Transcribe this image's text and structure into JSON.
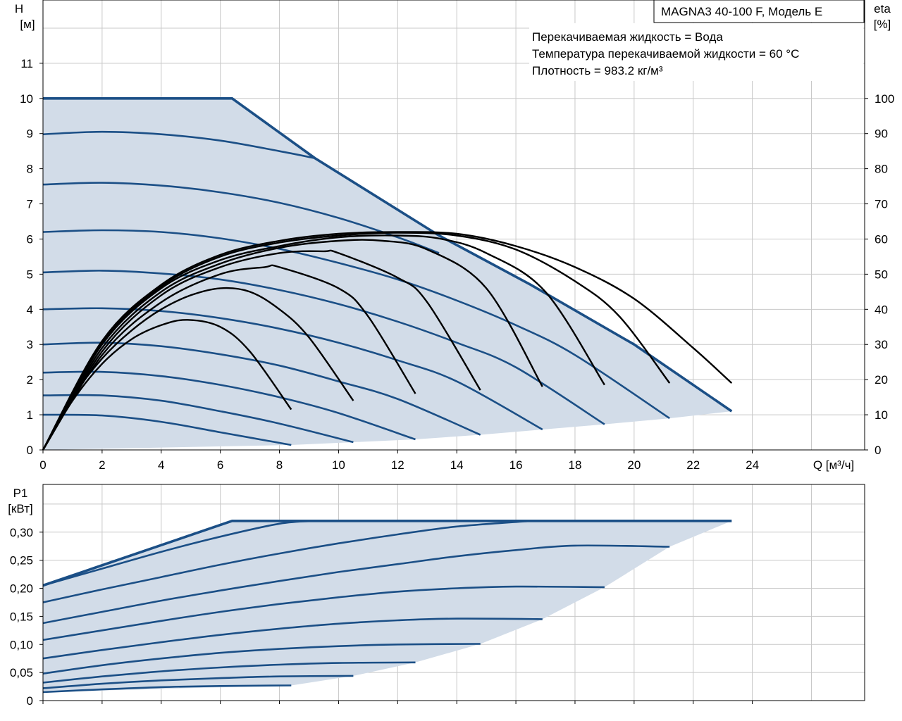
{
  "chart_data": [
    {
      "type": "line",
      "model_label": "MAGNA3 40-100 F, Модель E",
      "notes": [
        "Перекачиваемая жидкость = Вода",
        "Температура перекачиваемой жидкости = 60 °C",
        "Плотность = 983.2 кг/м³"
      ],
      "xlabel": "Q [м³/ч]",
      "ylabel_left_line1": "H",
      "ylabel_left_line2": "[м]",
      "ylabel_right_line1": "eta",
      "ylabel_right_line2": "[%]",
      "xlim": [
        0,
        27.8
      ],
      "ylim_left": [
        0,
        12.8
      ],
      "ylim_right": [
        0,
        128
      ],
      "x_ticks": [
        0,
        2,
        4,
        6,
        8,
        10,
        12,
        14,
        16,
        18,
        20,
        22,
        24
      ],
      "y_ticks_left": [
        0,
        1,
        2,
        3,
        4,
        5,
        6,
        7,
        8,
        9,
        10,
        11
      ],
      "y_ticks_right": [
        0,
        10,
        20,
        30,
        40,
        50,
        60,
        70,
        80,
        90,
        100
      ],
      "head_series": [
        {
          "x": [
            0,
            2,
            4,
            6,
            8.4
          ],
          "y": [
            1.0,
            0.98,
            0.8,
            0.5,
            0.14
          ]
        },
        {
          "x": [
            0,
            2,
            4,
            6,
            8,
            10.5
          ],
          "y": [
            1.55,
            1.55,
            1.4,
            1.1,
            0.75,
            0.22
          ]
        },
        {
          "x": [
            0,
            2,
            4,
            6,
            8,
            10,
            12.6
          ],
          "y": [
            2.2,
            2.22,
            2.1,
            1.85,
            1.5,
            1.05,
            0.3
          ]
        },
        {
          "x": [
            0,
            2,
            4,
            6,
            8,
            10,
            12,
            14.8
          ],
          "y": [
            3.0,
            3.05,
            2.95,
            2.72,
            2.4,
            1.95,
            1.45,
            0.43
          ]
        },
        {
          "x": [
            0,
            2,
            4,
            6,
            8,
            10,
            12,
            14,
            16.9
          ],
          "y": [
            4.0,
            4.03,
            3.95,
            3.75,
            3.45,
            3.05,
            2.55,
            1.95,
            0.58
          ]
        },
        {
          "x": [
            0,
            2,
            4,
            6,
            8,
            10,
            12,
            14,
            16,
            19.0
          ],
          "y": [
            5.05,
            5.1,
            5.02,
            4.85,
            4.55,
            4.15,
            3.65,
            3.05,
            2.35,
            0.73
          ]
        },
        {
          "x": [
            0,
            2,
            4,
            6,
            8,
            10,
            12,
            14,
            16,
            18,
            21.2
          ],
          "y": [
            6.2,
            6.25,
            6.2,
            6.02,
            5.72,
            5.32,
            4.85,
            4.25,
            3.55,
            2.7,
            0.9
          ]
        },
        {
          "x": [
            0,
            2,
            4,
            6,
            8,
            10,
            12,
            13.4
          ],
          "y": [
            7.55,
            7.6,
            7.52,
            7.33,
            7.03,
            6.6,
            6.05,
            5.6
          ]
        },
        {
          "x": [
            0,
            2,
            4,
            6,
            8,
            9.2
          ],
          "y": [
            8.98,
            9.05,
            8.98,
            8.8,
            8.5,
            8.3
          ]
        }
      ],
      "max_head_curve": {
        "x": [
          0,
          6.4,
          9.2,
          13.4,
          16.5,
          20,
          23.3
        ],
        "y": [
          10.0,
          10.0,
          8.3,
          6.1,
          4.7,
          3.0,
          1.1
        ]
      },
      "head_envelope_bottom": {
        "x": [
          0,
          8.4,
          10.5,
          12.6,
          14.8,
          16.9,
          19.0,
          21.2,
          23.3
        ],
        "y": [
          0,
          0.14,
          0.22,
          0.3,
          0.43,
          0.58,
          0.73,
          0.9,
          1.1
        ]
      },
      "efficiency_series": [
        {
          "x": [
            0,
            1,
            2,
            3,
            4,
            4.9,
            6,
            7,
            8.4
          ],
          "y": [
            0,
            14,
            24.5,
            31.5,
            35.5,
            37,
            35,
            28,
            11.5
          ]
        },
        {
          "x": [
            0,
            1,
            2,
            3,
            4,
            5,
            6,
            7,
            8,
            9,
            10.5
          ],
          "y": [
            0,
            15,
            26,
            34,
            40,
            44,
            46,
            45,
            40,
            32,
            14
          ]
        },
        {
          "x": [
            0,
            2,
            4,
            6,
            7.5,
            8,
            10,
            11,
            12.6
          ],
          "y": [
            0,
            27,
            42,
            50,
            52,
            52,
            46,
            38,
            16
          ]
        },
        {
          "x": [
            0,
            2,
            4,
            6,
            8,
            9.5,
            10,
            12,
            13,
            14.8
          ],
          "y": [
            0,
            28,
            44,
            52,
            56,
            56.5,
            56,
            49,
            42,
            17
          ]
        },
        {
          "x": [
            0,
            2,
            4,
            6,
            8,
            10,
            11.5,
            13,
            15,
            16.9
          ],
          "y": [
            0,
            29,
            45,
            53,
            57.5,
            59.5,
            59.5,
            57,
            46,
            18
          ]
        },
        {
          "x": [
            0,
            2,
            4,
            6,
            8,
            10,
            12,
            13.5,
            15,
            17,
            19.0
          ],
          "y": [
            0,
            30,
            46,
            54,
            58,
            60.5,
            61,
            60,
            56,
            45,
            18.5
          ]
        },
        {
          "x": [
            0,
            2,
            4,
            6,
            8,
            10,
            12,
            14,
            16,
            18,
            19.5,
            21.2
          ],
          "y": [
            0,
            30.5,
            46.5,
            55,
            59,
            61,
            61.8,
            61,
            57,
            48,
            38,
            19
          ]
        },
        {
          "x": [
            0,
            2,
            4,
            6,
            8,
            10,
            12,
            14,
            16,
            18,
            20,
            22,
            23.3
          ],
          "y": [
            0,
            31,
            47,
            55.5,
            59.5,
            61.5,
            62,
            61.5,
            58,
            52,
            43,
            29,
            19
          ]
        }
      ]
    },
    {
      "type": "line",
      "ylabel_line1": "P1",
      "ylabel_line2": "[кВт]",
      "xlim": [
        0,
        27.8
      ],
      "ylim": [
        0,
        0.385
      ],
      "y_ticks": [
        "0",
        "0,05",
        "0,10",
        "0,15",
        "0,20",
        "0,25",
        "0,30"
      ],
      "y_tick_values": [
        0,
        0.05,
        0.1,
        0.15,
        0.2,
        0.25,
        0.3
      ],
      "power_series": [
        {
          "x": [
            0,
            2,
            4,
            6,
            8.4
          ],
          "y": [
            0.015,
            0.02,
            0.024,
            0.026,
            0.027
          ]
        },
        {
          "x": [
            0,
            2,
            4,
            6,
            8,
            10.5
          ],
          "y": [
            0.022,
            0.03,
            0.036,
            0.04,
            0.043,
            0.044
          ]
        },
        {
          "x": [
            0,
            2,
            4,
            6,
            8,
            10,
            12.6
          ],
          "y": [
            0.032,
            0.043,
            0.052,
            0.059,
            0.064,
            0.067,
            0.068
          ]
        },
        {
          "x": [
            0,
            2,
            4,
            6,
            8,
            10,
            12,
            14.8
          ],
          "y": [
            0.048,
            0.063,
            0.075,
            0.085,
            0.092,
            0.097,
            0.1,
            0.101
          ]
        },
        {
          "x": [
            0,
            2,
            4,
            6,
            8,
            10,
            12,
            14,
            16.9
          ],
          "y": [
            0.075,
            0.09,
            0.104,
            0.117,
            0.128,
            0.137,
            0.143,
            0.146,
            0.145
          ]
        },
        {
          "x": [
            0,
            2,
            4,
            6,
            8,
            10,
            12,
            14,
            16,
            19.0
          ],
          "y": [
            0.108,
            0.125,
            0.142,
            0.158,
            0.172,
            0.184,
            0.194,
            0.2,
            0.203,
            0.202
          ]
        },
        {
          "x": [
            0,
            2,
            4,
            6,
            8,
            10,
            12,
            14,
            16,
            18,
            21.2
          ],
          "y": [
            0.138,
            0.158,
            0.178,
            0.196,
            0.213,
            0.229,
            0.243,
            0.257,
            0.268,
            0.276,
            0.274
          ]
        },
        {
          "x": [
            0,
            2,
            4,
            6,
            8,
            10,
            12,
            14,
            16.5
          ],
          "y": [
            0.175,
            0.198,
            0.22,
            0.242,
            0.262,
            0.28,
            0.296,
            0.31,
            0.32
          ]
        },
        {
          "x": [
            0,
            2,
            4,
            6,
            8,
            9.2
          ],
          "y": [
            0.205,
            0.235,
            0.265,
            0.292,
            0.315,
            0.32
          ]
        }
      ],
      "max_power_curve": {
        "x": [
          0,
          6.4,
          9.2,
          16.5,
          23.3
        ],
        "y": [
          0.205,
          0.32,
          0.32,
          0.32,
          0.32
        ]
      },
      "power_envelope_bottom": {
        "x": [
          0,
          8.4,
          10.5,
          12.6,
          14.8,
          16.9,
          19.0,
          21.2,
          23.3
        ],
        "y": [
          0.015,
          0.027,
          0.044,
          0.068,
          0.101,
          0.145,
          0.202,
          0.274,
          0.32
        ]
      }
    }
  ]
}
